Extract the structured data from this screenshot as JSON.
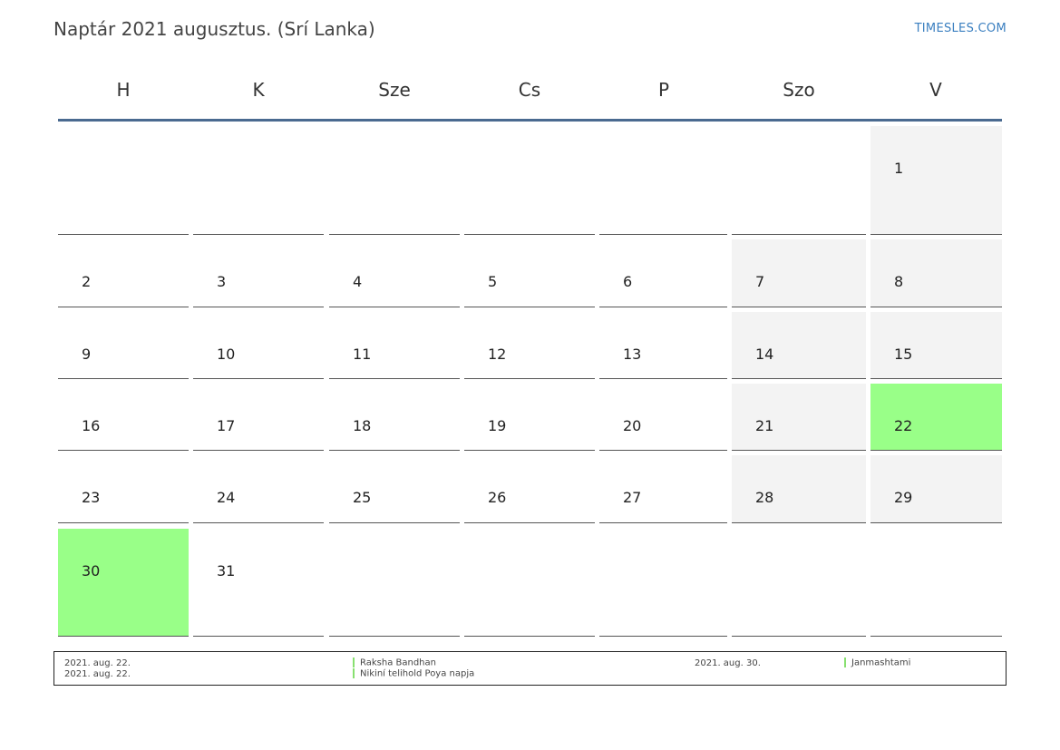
{
  "header": {
    "title": "Naptár 2021 augusztus. (Srí Lanka)",
    "brand": "TIMESLES.COM"
  },
  "weekdays": [
    "H",
    "K",
    "Sze",
    "Cs",
    "P",
    "Szo",
    "V"
  ],
  "days": [
    "1",
    "2",
    "3",
    "4",
    "5",
    "6",
    "7",
    "8",
    "9",
    "10",
    "11",
    "12",
    "13",
    "14",
    "15",
    "16",
    "17",
    "18",
    "19",
    "20",
    "21",
    "22",
    "23",
    "24",
    "25",
    "26",
    "27",
    "28",
    "29",
    "30",
    "31"
  ],
  "holiday_days": [
    "22",
    "30"
  ],
  "colors": {
    "holiday": "#99ff88",
    "weekend": "#f3f3f3",
    "header_line": "#4a6a90",
    "brand": "#3a7fc0"
  },
  "legend": [
    {
      "date": "2021. aug. 22.",
      "name": "Raksha Bandhan"
    },
    {
      "date": "2021. aug. 22.",
      "name": "Nikiní telihold Poya napja"
    },
    {
      "date": "2021. aug. 30.",
      "name": "Janmashtami"
    }
  ]
}
